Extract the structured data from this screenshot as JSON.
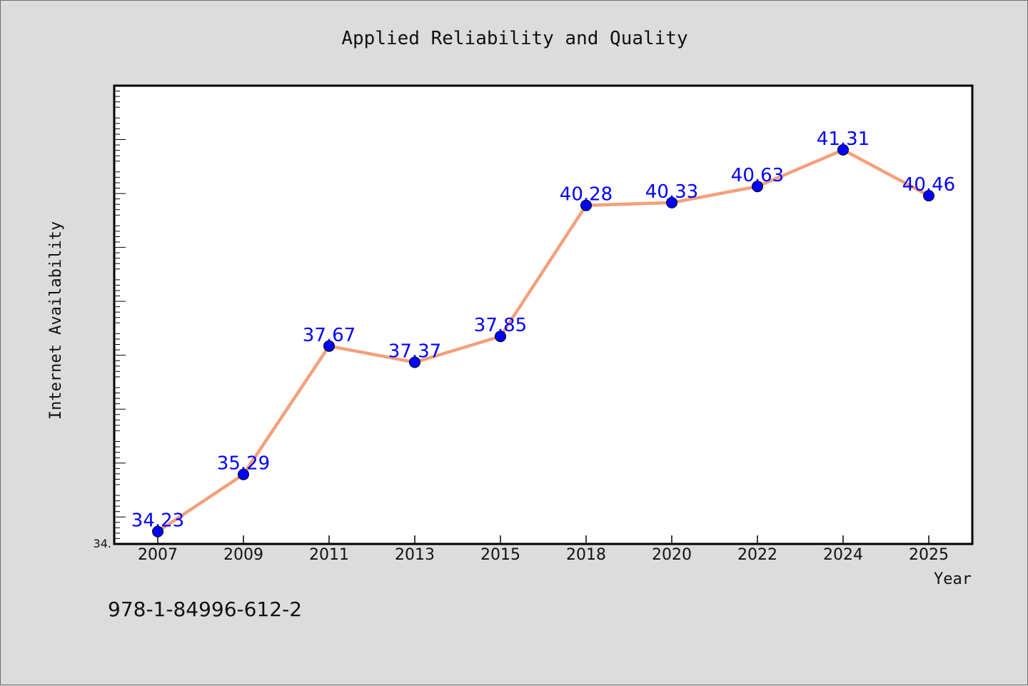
{
  "chart_data": {
    "type": "line",
    "title": "Applied Reliability and Quality",
    "xlabel": "Year",
    "ylabel": "Internet Availability",
    "categories": [
      "2007",
      "2009",
      "2011",
      "2013",
      "2015",
      "2018",
      "2020",
      "2022",
      "2024",
      "2025"
    ],
    "series": [
      {
        "values": [
          34.23,
          35.29,
          37.67,
          37.37,
          37.85,
          40.28,
          40.33,
          40.63,
          41.31,
          40.46
        ]
      }
    ],
    "data_labels": [
      "34.23",
      "35.29",
      "37.67",
      "37.37",
      "37.85",
      "40.28",
      "40.33",
      "40.63",
      "41.31",
      "40.46"
    ],
    "ylim": [
      34.0,
      42.5
    ],
    "y_min_label": "34.",
    "grid": false,
    "legend": "none",
    "colors": {
      "line": "#f4a07c",
      "marker": "#0000ff",
      "label": "#0000ff",
      "plot_bg": "#ffffff",
      "page_bg": "#dcdcdc"
    }
  },
  "footer": {
    "isbn": "978-1-84996-612-2"
  }
}
